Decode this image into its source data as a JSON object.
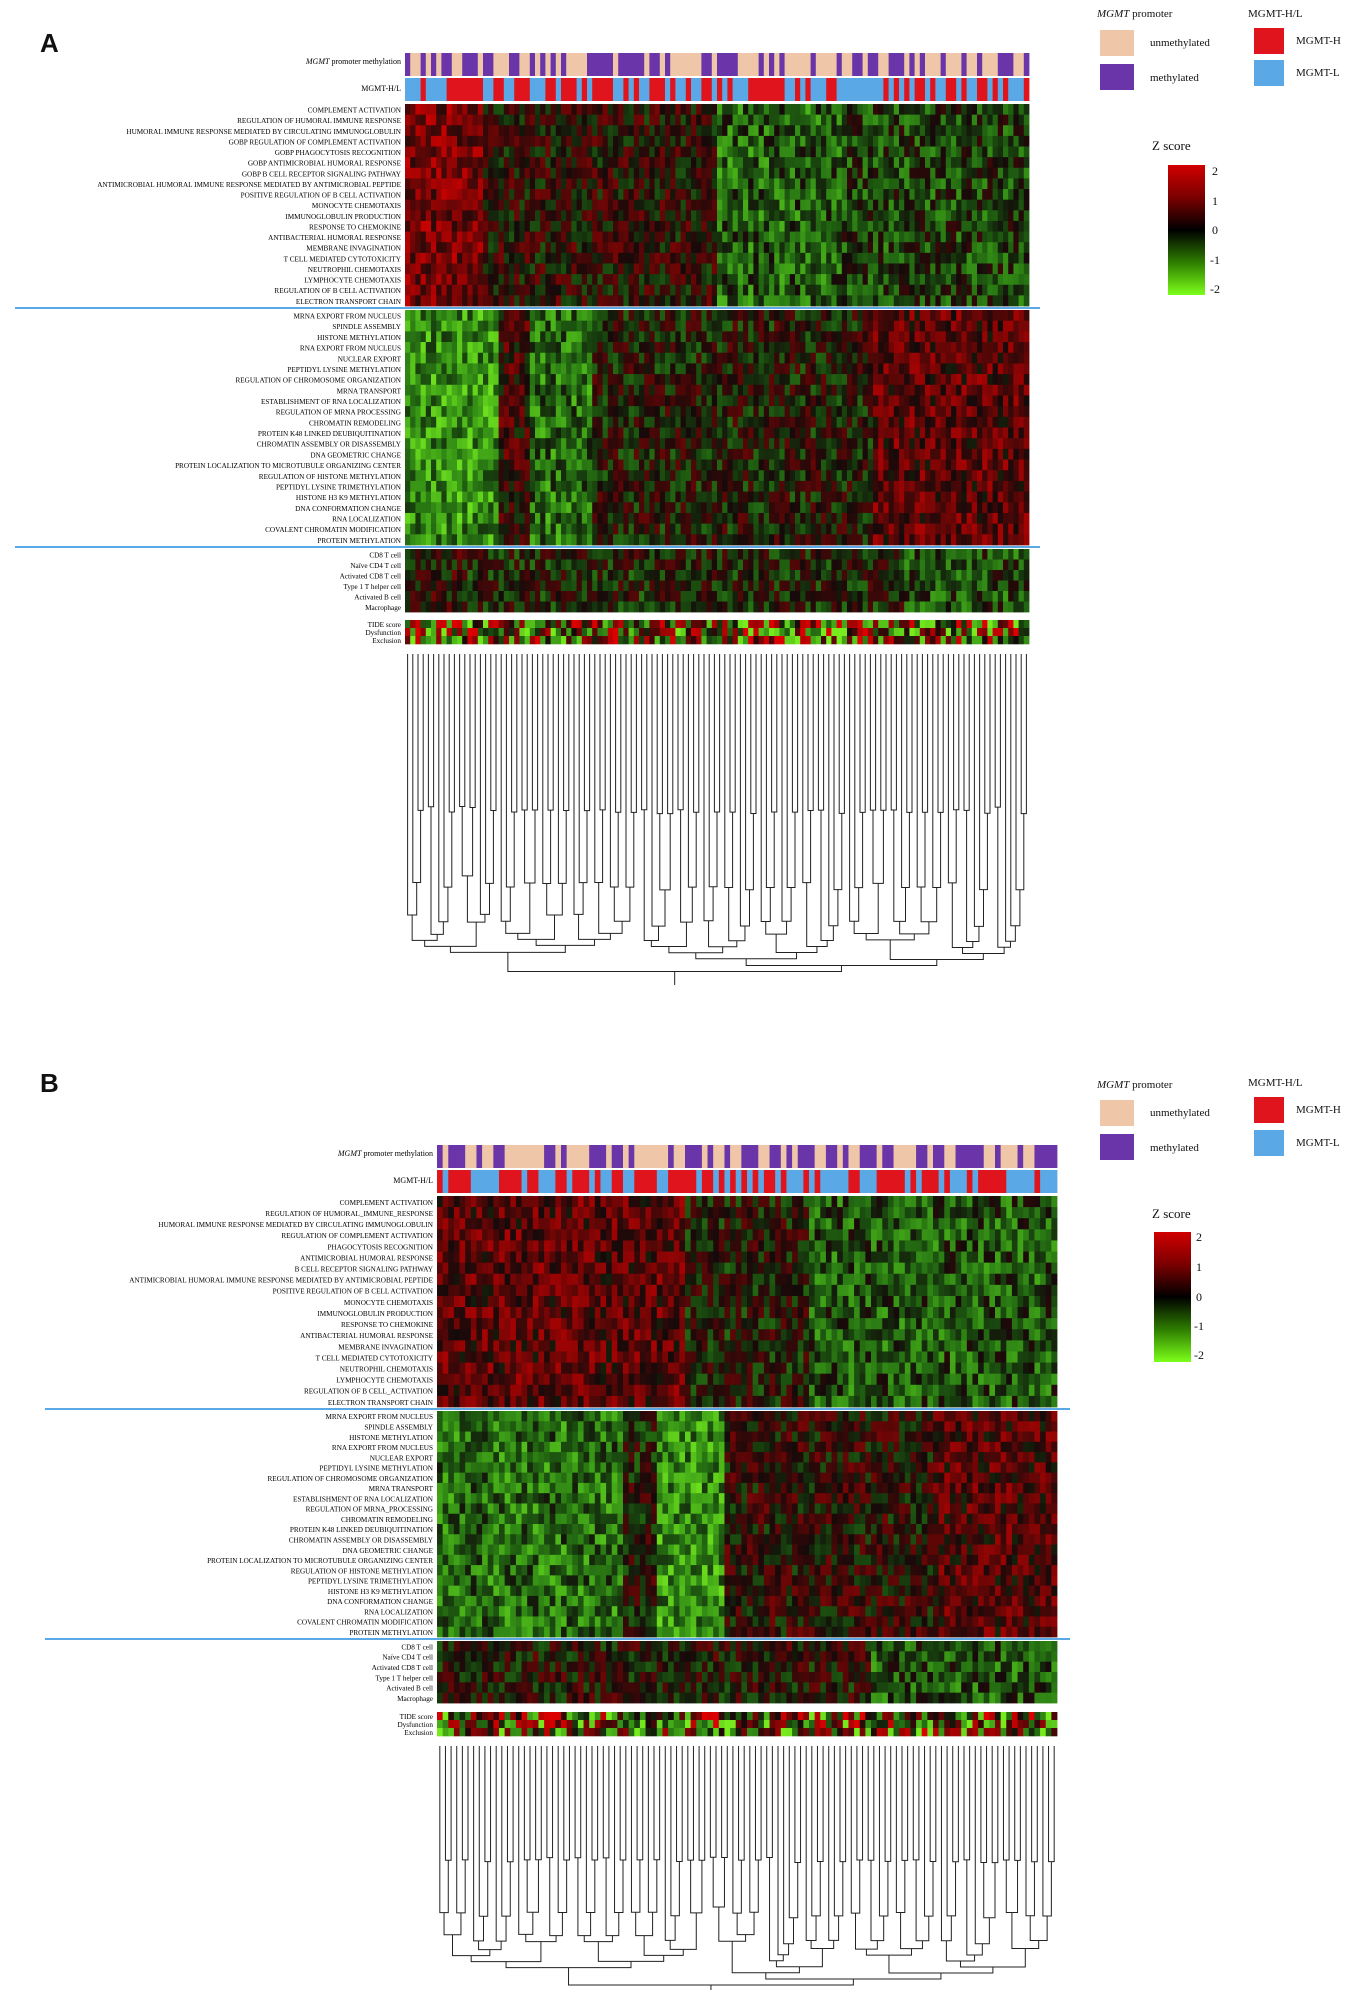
{
  "chart_data": [
    {
      "panel": "A",
      "type": "heatmap",
      "annotation_tracks": [
        {
          "label_italic": "MGMT",
          "label_rest": " promoter methylation",
          "colors": {
            "unmethylated": "#efc7a8",
            "methylated": "#6a35a8"
          }
        },
        {
          "label": "MGMT-H/L",
          "colors": {
            "MGMT-H": "#e0141c",
            "MGMT-L": "#5aa9e6"
          }
        }
      ],
      "row_groups": [
        {
          "rows": [
            "COMPLEMENT ACTIVATION",
            "REGULATION OF HUMORAL IMMUNE RESPONSE",
            "HUMORAL IMMUNE RESPONSE MEDIATED BY CIRCULATING IMMUNOGLOBULIN",
            "GOBP REGULATION OF COMPLEMENT ACTIVATION",
            "GOBP PHAGOCYTOSIS RECOGNITION",
            "GOBP ANTIMICROBIAL HUMORAL RESPONSE",
            "GOBP B CELL RECEPTOR SIGNALING PATHWAY",
            "ANTIMICROBIAL HUMORAL IMMUNE RESPONSE MEDIATED BY ANTIMICROBIAL PEPTIDE",
            "POSITIVE REGULATION OF B CELL ACTIVATION",
            "MONOCYTE CHEMOTAXIS",
            "IMMUNOGLOBULIN PRODUCTION",
            "RESPONSE TO CHEMOKINE",
            "ANTIBACTERIAL HUMORAL RESPONSE",
            "MEMBRANE INVAGINATION",
            "T CELL MEDIATED CYTOTOXICITY",
            "NEUTROPHIL CHEMOTAXIS",
            "LYMPHOCYTE CHEMOTAXIS",
            "REGULATION OF B CELL ACTIVATION",
            "ELECTRON TRANSPORT CHAIN"
          ]
        },
        {
          "rows": [
            "MRNA EXPORT FROM NUCLEUS",
            "SPINDLE ASSEMBLY",
            "HISTONE METHYLATION",
            "RNA EXPORT FROM NUCLEUS",
            "NUCLEAR EXPORT",
            "PEPTIDYL LYSINE METHYLATION",
            "REGULATION OF CHROMOSOME ORGANIZATION",
            "MRNA TRANSPORT",
            "ESTABLISHMENT OF RNA LOCALIZATION",
            "REGULATION OF MRNA PROCESSING",
            "CHROMATIN REMODELING",
            "PROTEIN K48 LINKED DEUBIQUITINATION",
            "CHROMATIN ASSEMBLY OR DISASSEMBLY",
            "DNA GEOMETRIC CHANGE",
            "PROTEIN LOCALIZATION TO MICROTUBULE ORGANIZING CENTER",
            "REGULATION OF HISTONE METHYLATION",
            "PEPTIDYL LYSINE TRIMETHYLATION",
            "HISTONE H3 K9 METHYLATION",
            "DNA CONFORMATION CHANGE",
            "RNA LOCALIZATION",
            "COVALENT CHROMATIN MODIFICATION",
            "PROTEIN METHYLATION"
          ]
        },
        {
          "rows": [
            "CD8 T cell",
            "Naïve CD4 T cell",
            "Activated CD8 T cell",
            "Type 1 T helper cell",
            "Activated B cell",
            "Macrophage"
          ]
        }
      ],
      "tide_rows": [
        "TIDE score",
        "Dysfunction",
        "Exclusion"
      ],
      "legend": {
        "promoter_title_italic": "MGMT",
        "promoter_title_rest": " promoter",
        "promoter_items": [
          "unmethylated",
          "methylated"
        ],
        "hl_title": "MGMT-H/L",
        "hl_items": [
          "MGMT-H",
          "MGMT-L"
        ],
        "zscore_title": "Z score",
        "zscore_ticks": [
          "2",
          "1",
          "0",
          "-1",
          "-2"
        ],
        "zlim": [
          -2,
          2
        ]
      }
    },
    {
      "panel": "B",
      "type": "heatmap",
      "annotation_tracks": [
        {
          "label_italic": "MGMT",
          "label_rest": " promoter methylation",
          "colors": {
            "unmethylated": "#efc7a8",
            "methylated": "#6a35a8"
          }
        },
        {
          "label": "MGMT-H/L",
          "colors": {
            "MGMT-H": "#e0141c",
            "MGMT-L": "#5aa9e6"
          }
        }
      ],
      "row_groups": [
        {
          "rows": [
            "COMPLEMENT ACTIVATION",
            "REGULATION OF HUMORAL_IMMUNE_RESPONSE",
            "HUMORAL IMMUNE RESPONSE MEDIATED BY CIRCULATING IMMUNOGLOBULIN",
            "REGULATION OF COMPLEMENT ACTIVATION",
            "PHAGOCYTOSIS RECOGNITION",
            "ANTIMICROBIAL HUMORAL RESPONSE",
            "B CELL RECEPTOR SIGNALING PATHWAY",
            "ANTIMICROBIAL HUMORAL IMMUNE RESPONSE MEDIATED BY ANTIMICROBIAL PEPTIDE",
            "POSITIVE REGULATION OF B CELL ACTIVATION",
            "MONOCYTE CHEMOTAXIS",
            "IMMUNOGLOBULIN PRODUCTION",
            "RESPONSE TO CHEMOKINE",
            "ANTIBACTERIAL HUMORAL RESPONSE",
            "MEMBRANE INVAGINATION",
            "T CELL MEDIATED CYTOTOXICITY",
            "NEUTROPHIL CHEMOTAXIS",
            "LYMPHOCYTE CHEMOTAXIS",
            "REGULATION OF B CELL_ACTIVATION",
            "ELECTRON TRANSPORT CHAIN"
          ]
        },
        {
          "rows": [
            "MRNA EXPORT FROM NUCLEUS",
            "SPINDLE ASSEMBLY",
            "HISTONE METHYLATION",
            "RNA EXPORT FROM NUCLEUS",
            "NUCLEAR EXPORT",
            "PEPTIDYL LYSINE METHYLATION",
            "REGULATION OF CHROMOSOME ORGANIZATION",
            "MRNA TRANSPORT",
            "ESTABLISHMENT OF RNA LOCALIZATION",
            "REGULATION OF MRNA_PROCESSING",
            "CHROMATIN REMODELING",
            "PROTEIN K48 LINKED DEUBIQUITINATION",
            "CHROMATIN ASSEMBLY OR DISASSEMBLY",
            "DNA GEOMETRIC CHANGE",
            "PROTEIN LOCALIZATION TO MICROTUBULE ORGANIZING CENTER",
            "REGULATION OF HISTONE METHYLATION",
            "PEPTIDYL LYSINE TRIMETHYLATION",
            "HISTONE H3 K9 METHYLATION",
            "DNA CONFORMATION CHANGE",
            "RNA LOCALIZATION",
            "COVALENT CHROMATIN MODIFICATION",
            "PROTEIN METHYLATION"
          ]
        },
        {
          "rows": [
            "CD8 T cell",
            "Naïve CD4 T cell",
            "Activated CD8 T cell",
            "Type 1 T helper cell",
            "Activated B cell",
            "Macrophage"
          ]
        }
      ],
      "tide_rows": [
        "TIDE score",
        "Dysfunction",
        "Exclusion"
      ],
      "legend": {
        "promoter_title_italic": "MGMT",
        "promoter_title_rest": " promoter",
        "promoter_items": [
          "unmethylated",
          "methylated"
        ],
        "hl_title": "MGMT-H/L",
        "hl_items": [
          "MGMT-H",
          "MGMT-L"
        ],
        "zscore_title": "Z score",
        "zscore_ticks": [
          "2",
          "1",
          "0",
          "-1",
          "-2"
        ],
        "zlim": [
          -2,
          2
        ]
      }
    }
  ],
  "panels": [
    {
      "letter": "A"
    },
    {
      "letter": "B"
    }
  ]
}
